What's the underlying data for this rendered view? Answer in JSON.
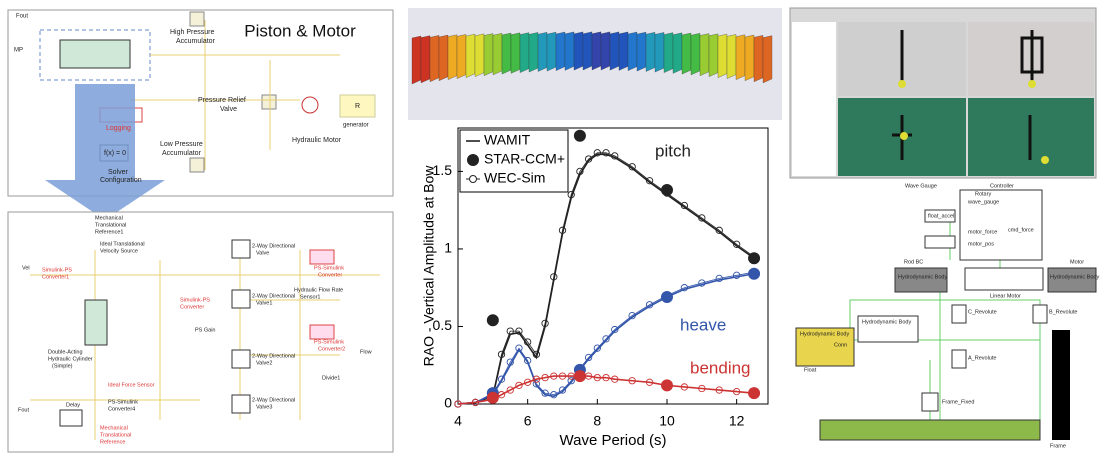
{
  "left_top": {
    "title": "Piston & Motor",
    "labels": [
      "Fout",
      "MP",
      "High Pressure",
      "Accumulator",
      "Pressure Relief",
      "Valve",
      "Hydraulic Motor",
      "Low Pressure",
      "Accumulator",
      "Logging",
      "f(x) = 0",
      "Solver",
      "Configuration",
      "generator",
      "R"
    ]
  },
  "left_bottom": {
    "labels": [
      "Mechanical",
      "Translational",
      "Reference1",
      "Ideal Translational",
      "Velocity Source",
      "Simulink-PS",
      "Converter1",
      "Double-Acting",
      "Hydraulic Cylinder",
      "(Simple)",
      "PS Gain",
      "Ideal Force Sensor",
      "PS-Simulink",
      "Converter4",
      "Delay",
      "Mechanical",
      "Translational",
      "Reference",
      "Fout",
      "Vel",
      "2-Way Directional",
      "Valve",
      "2-Way Directional",
      "Valve1",
      "2-Way Directional",
      "Valve2",
      "2-Way Directional",
      "Valve3",
      "PS-Simulink",
      "Converter",
      "Hydraulic Flow Rate",
      "Sensor1",
      "PS-Simulink",
      "Converter2",
      "Divide1",
      "Flow",
      "Simulink-PS",
      "Converter"
    ]
  },
  "chart_data": {
    "type": "line",
    "xlabel": "Wave Period (s)",
    "ylabel": "RAO - Vertical Amplitude at Bow",
    "xlim": [
      4,
      12.9
    ],
    "ylim": [
      0,
      1.78
    ],
    "xticks": [
      4,
      6,
      8,
      10,
      12
    ],
    "yticks": [
      0,
      0.5,
      1,
      1.5
    ],
    "legend": [
      "WAMIT",
      "STAR-CCM+",
      "WEC-Sim"
    ],
    "series": [
      {
        "name": "pitch",
        "color": "#222222",
        "x": [
          4,
          4.5,
          5,
          5.25,
          5.5,
          5.75,
          6,
          6.25,
          6.5,
          6.75,
          7,
          7.25,
          7.5,
          7.75,
          8,
          8.25,
          8.5,
          9,
          9.5,
          10,
          10.5,
          11,
          11.5,
          12,
          12.5
        ],
        "wamit": [
          0,
          0.01,
          0.05,
          0.3,
          0.45,
          0.46,
          0.38,
          0.3,
          0.5,
          0.8,
          1.1,
          1.33,
          1.48,
          1.57,
          1.61,
          1.61,
          1.59,
          1.52,
          1.43,
          1.35,
          1.27,
          1.19,
          1.11,
          1.02,
          0.94
        ],
        "wec_sim": [
          0,
          0.01,
          0.06,
          0.32,
          0.47,
          0.47,
          0.4,
          0.32,
          0.52,
          0.82,
          1.12,
          1.35,
          1.5,
          1.58,
          1.62,
          1.62,
          1.6,
          1.53,
          1.44,
          1.36,
          1.28,
          1.2,
          1.12,
          1.03,
          0.95
        ],
        "star_x": [
          5,
          7.5,
          10,
          12.5
        ],
        "star": [
          0.54,
          1.73,
          1.38,
          0.94
        ]
      },
      {
        "name": "heave",
        "color": "#3355aa",
        "x": [
          4,
          4.5,
          5,
          5.25,
          5.5,
          5.75,
          6,
          6.25,
          6.5,
          6.75,
          7,
          7.25,
          7.5,
          7.75,
          8,
          8.25,
          8.5,
          9,
          9.5,
          10,
          10.5,
          11,
          11.5,
          12,
          12.5
        ],
        "wamit": [
          0,
          0.01,
          0.06,
          0.15,
          0.25,
          0.35,
          0.27,
          0.12,
          0.06,
          0.05,
          0.08,
          0.14,
          0.22,
          0.29,
          0.35,
          0.41,
          0.47,
          0.56,
          0.63,
          0.69,
          0.74,
          0.77,
          0.8,
          0.82,
          0.84
        ],
        "wec_sim": [
          0,
          0.01,
          0.07,
          0.16,
          0.27,
          0.36,
          0.28,
          0.13,
          0.07,
          0.06,
          0.09,
          0.15,
          0.23,
          0.3,
          0.36,
          0.42,
          0.48,
          0.57,
          0.64,
          0.7,
          0.75,
          0.78,
          0.81,
          0.83,
          0.85
        ],
        "star_x": [
          5,
          7.5,
          10,
          12.5
        ],
        "star": [
          0.07,
          0.22,
          0.69,
          0.84
        ]
      },
      {
        "name": "bending",
        "color": "#cc3333",
        "x": [
          4,
          4.5,
          5,
          5.25,
          5.5,
          5.75,
          6,
          6.25,
          6.5,
          6.75,
          7,
          7.25,
          7.5,
          7.75,
          8,
          8.25,
          8.5,
          9,
          9.5,
          10,
          10.5,
          11,
          11.5,
          12,
          12.5
        ],
        "wamit": [
          0,
          0.01,
          0.03,
          0.06,
          0.09,
          0.12,
          0.14,
          0.16,
          0.17,
          0.18,
          0.18,
          0.18,
          0.18,
          0.18,
          0.17,
          0.17,
          0.16,
          0.15,
          0.14,
          0.12,
          0.11,
          0.1,
          0.09,
          0.08,
          0.07
        ],
        "wec_sim": [
          0,
          0.01,
          0.03,
          0.06,
          0.09,
          0.12,
          0.14,
          0.16,
          0.17,
          0.18,
          0.18,
          0.18,
          0.18,
          0.18,
          0.17,
          0.17,
          0.16,
          0.15,
          0.14,
          0.12,
          0.11,
          0.1,
          0.09,
          0.08,
          0.07
        ],
        "star_x": [
          5,
          7.5,
          10,
          12.5
        ],
        "star": [
          0.04,
          0.18,
          0.12,
          0.07
        ]
      }
    ]
  },
  "right": {
    "labels": [
      "Wave Gauge",
      "Controller",
      "Rotary",
      "wave_gauge",
      "float_accel",
      "motor_force",
      "motor_pos",
      "cmd_force",
      "Rod BC",
      "Hydrodynamic Body",
      "Linear Motor",
      "Motor",
      "Hydrodynamic Body",
      "C_Revolute",
      "B_Revolute",
      "Hydrodynamic Body",
      "Hydrodynamic Body",
      "A_Revolute",
      "Float",
      "Frame_Fixed",
      "Frame",
      "Conn"
    ]
  }
}
